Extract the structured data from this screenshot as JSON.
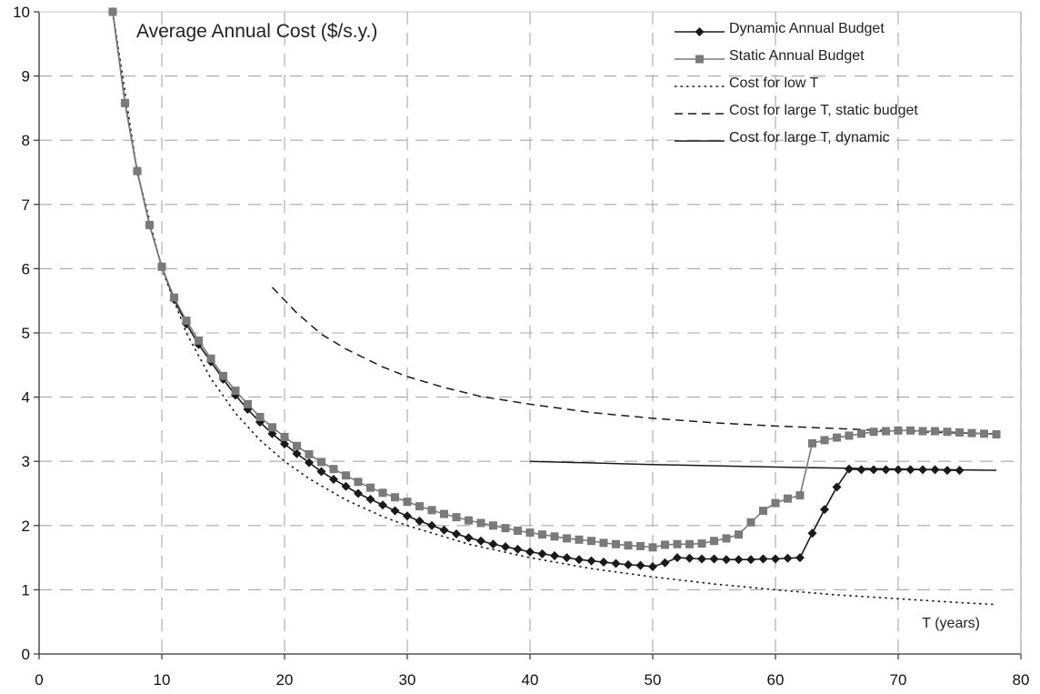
{
  "chart_data": {
    "type": "line",
    "title": "Average Annual Cost ($/s.y.)",
    "xlabel": "T (years)",
    "ylabel": "",
    "xlim": [
      0,
      80
    ],
    "ylim": [
      0,
      10
    ],
    "xticks": [
      0,
      10,
      20,
      30,
      40,
      50,
      60,
      70,
      80
    ],
    "yticks": [
      0,
      1,
      2,
      3,
      4,
      5,
      6,
      7,
      8,
      9,
      10
    ],
    "grid": true,
    "legend_position": "top-right",
    "series": [
      {
        "name": "Dynamic Annual Budget",
        "style": "solid-diamond",
        "color": "#1a1a1a",
        "x": [
          6,
          7,
          8,
          9,
          10,
          11,
          12,
          13,
          14,
          15,
          16,
          17,
          18,
          19,
          20,
          21,
          22,
          23,
          24,
          25,
          26,
          27,
          28,
          29,
          30,
          31,
          32,
          33,
          34,
          35,
          36,
          37,
          38,
          39,
          40,
          41,
          42,
          43,
          44,
          45,
          46,
          47,
          48,
          49,
          50,
          51,
          52,
          53,
          54,
          55,
          56,
          57,
          58,
          59,
          60,
          61,
          62,
          63,
          64,
          65,
          66,
          67,
          68,
          69,
          70,
          71,
          72,
          73,
          74,
          75
        ],
        "y": [
          10.0,
          8.58,
          7.52,
          6.68,
          6.03,
          5.52,
          5.14,
          4.82,
          4.55,
          4.28,
          4.03,
          3.81,
          3.61,
          3.43,
          3.27,
          3.12,
          2.98,
          2.84,
          2.72,
          2.61,
          2.5,
          2.41,
          2.32,
          2.23,
          2.15,
          2.07,
          2.0,
          1.93,
          1.87,
          1.81,
          1.76,
          1.71,
          1.67,
          1.63,
          1.59,
          1.56,
          1.53,
          1.5,
          1.47,
          1.45,
          1.43,
          1.41,
          1.39,
          1.38,
          1.36,
          1.42,
          1.5,
          1.49,
          1.48,
          1.48,
          1.47,
          1.47,
          1.47,
          1.48,
          1.48,
          1.49,
          1.5,
          1.88,
          2.25,
          2.6,
          2.88,
          2.87,
          2.87,
          2.87,
          2.87,
          2.87,
          2.87,
          2.87,
          2.86,
          2.86
        ]
      },
      {
        "name": "Static Annual Budget",
        "style": "solid-square",
        "color": "#7a7a7a",
        "x": [
          6,
          7,
          8,
          9,
          10,
          11,
          12,
          13,
          14,
          15,
          16,
          17,
          18,
          19,
          20,
          21,
          22,
          23,
          24,
          25,
          26,
          27,
          28,
          29,
          30,
          31,
          32,
          33,
          34,
          35,
          36,
          37,
          38,
          39,
          40,
          41,
          42,
          43,
          44,
          45,
          46,
          47,
          48,
          49,
          50,
          51,
          52,
          53,
          54,
          55,
          56,
          57,
          58,
          59,
          60,
          61,
          62,
          63,
          64,
          65,
          66,
          67,
          68,
          69,
          70,
          71,
          72,
          73,
          74,
          75,
          76,
          77,
          78
        ],
        "y": [
          10.0,
          8.58,
          7.52,
          6.68,
          6.03,
          5.55,
          5.19,
          4.88,
          4.6,
          4.33,
          4.1,
          3.89,
          3.69,
          3.53,
          3.38,
          3.24,
          3.11,
          2.99,
          2.88,
          2.78,
          2.68,
          2.59,
          2.51,
          2.44,
          2.37,
          2.3,
          2.24,
          2.18,
          2.13,
          2.08,
          2.04,
          2.0,
          1.96,
          1.92,
          1.89,
          1.86,
          1.83,
          1.8,
          1.78,
          1.76,
          1.73,
          1.71,
          1.69,
          1.68,
          1.66,
          1.7,
          1.71,
          1.71,
          1.72,
          1.76,
          1.8,
          1.86,
          2.05,
          2.23,
          2.35,
          2.42,
          2.47,
          3.28,
          3.33,
          3.37,
          3.4,
          3.43,
          3.46,
          3.47,
          3.48,
          3.48,
          3.47,
          3.47,
          3.46,
          3.45,
          3.44,
          3.43,
          3.42
        ]
      },
      {
        "name": "Cost for low T",
        "style": "dotted",
        "color": "#1a1a1a",
        "x": [
          6,
          8,
          10,
          12,
          14,
          16,
          18,
          20,
          22,
          25,
          28,
          30,
          35,
          40,
          45,
          50,
          55,
          60,
          65,
          70,
          75,
          78
        ],
        "y": [
          10.0,
          7.5,
          6.0,
          5.0,
          4.29,
          3.75,
          3.33,
          3.0,
          2.73,
          2.4,
          2.14,
          2.0,
          1.71,
          1.5,
          1.33,
          1.2,
          1.09,
          1.0,
          0.92,
          0.86,
          0.8,
          0.77
        ]
      },
      {
        "name": "Cost for large T, static budget",
        "style": "dashed",
        "color": "#1a1a1a",
        "x": [
          19,
          21,
          23,
          25,
          28,
          30,
          33,
          36,
          40,
          45,
          50,
          55,
          60,
          65,
          70,
          75,
          78
        ],
        "y": [
          5.71,
          5.31,
          4.98,
          4.75,
          4.47,
          4.32,
          4.15,
          4.01,
          3.89,
          3.76,
          3.67,
          3.6,
          3.55,
          3.51,
          3.47,
          3.44,
          3.43
        ]
      },
      {
        "name": "Cost for large T, dynamic",
        "style": "solid",
        "color": "#1a1a1a",
        "x": [
          40,
          50,
          60,
          70,
          78
        ],
        "y": [
          3.0,
          2.95,
          2.91,
          2.88,
          2.86
        ]
      }
    ]
  }
}
